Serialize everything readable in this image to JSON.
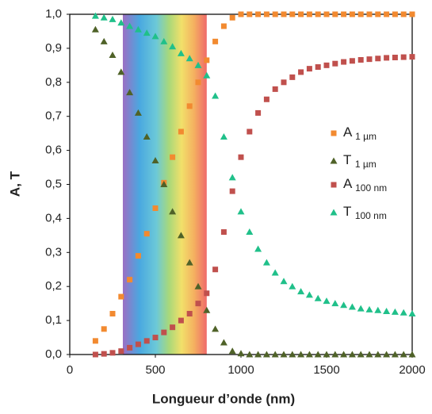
{
  "chart_data": {
    "type": "scatter",
    "xlabel": "Longueur d’onde (nm)",
    "ylabel": "A, T",
    "xlim": [
      0,
      2000
    ],
    "xticks": [
      0,
      500,
      1000,
      1500,
      2000
    ],
    "ylim": [
      0,
      1
    ],
    "yticks": [
      {
        "value": 0,
        "label": "0,0"
      },
      {
        "value": 0.1,
        "label": "0,1"
      },
      {
        "value": 0.2,
        "label": "0,2"
      },
      {
        "value": 0.3,
        "label": "0,3"
      },
      {
        "value": 0.4,
        "label": "0,4"
      },
      {
        "value": 0.5,
        "label": "0,5"
      },
      {
        "value": 0.6,
        "label": "0,6"
      },
      {
        "value": 0.7,
        "label": "0,7"
      },
      {
        "value": 0.8,
        "label": "0,8"
      },
      {
        "value": 0.9,
        "label": "0,9"
      },
      {
        "value": 1,
        "label": "1,0"
      }
    ],
    "highlight_range": [
      310,
      800
    ],
    "legend": "right",
    "x": [
      150,
      200,
      250,
      300,
      350,
      400,
      450,
      500,
      550,
      600,
      650,
      700,
      750,
      800,
      850,
      900,
      950,
      1000,
      1050,
      1100,
      1150,
      1200,
      1250,
      1300,
      1350,
      1400,
      1450,
      1500,
      1550,
      1600,
      1650,
      1700,
      1750,
      1800,
      1850,
      1900,
      1950,
      2000
    ],
    "series": [
      {
        "name": "A 1 µm",
        "color": "#f28a30",
        "marker": "square",
        "values": [
          0.04,
          0.075,
          0.12,
          0.17,
          0.22,
          0.29,
          0.355,
          0.43,
          0.505,
          0.58,
          0.655,
          0.73,
          0.8,
          0.865,
          0.92,
          0.965,
          0.99,
          1,
          1,
          1,
          1,
          1,
          1,
          1,
          1,
          1,
          1,
          1,
          1,
          1,
          1,
          1,
          1,
          1,
          1,
          1,
          1,
          1
        ]
      },
      {
        "name": "T 1 µm",
        "color": "#4f6228",
        "marker": "triangle",
        "values": [
          0.955,
          0.92,
          0.88,
          0.83,
          0.77,
          0.71,
          0.64,
          0.57,
          0.5,
          0.42,
          0.35,
          0.27,
          0.2,
          0.13,
          0.075,
          0.035,
          0.01,
          0.003,
          0,
          0,
          0,
          0,
          0,
          0,
          0,
          0,
          0,
          0,
          0,
          0,
          0,
          0,
          0,
          0,
          0,
          0,
          0,
          0
        ]
      },
      {
        "name": "A 100 nm",
        "color": "#c0504d",
        "marker": "square",
        "values": [
          0,
          0.002,
          0.005,
          0.01,
          0.02,
          0.03,
          0.04,
          0.05,
          0.065,
          0.08,
          0.1,
          0.12,
          0.15,
          0.18,
          0.25,
          0.36,
          0.48,
          0.58,
          0.655,
          0.71,
          0.75,
          0.78,
          0.8,
          0.815,
          0.83,
          0.84,
          0.845,
          0.85,
          0.855,
          0.86,
          0.863,
          0.866,
          0.868,
          0.87,
          0.872,
          0.873,
          0.874,
          0.875
        ]
      },
      {
        "name": "T 100 nm",
        "color": "#20c08a",
        "marker": "triangle",
        "values": [
          0.995,
          0.99,
          0.985,
          0.975,
          0.965,
          0.955,
          0.945,
          0.935,
          0.92,
          0.905,
          0.885,
          0.87,
          0.85,
          0.82,
          0.76,
          0.64,
          0.52,
          0.42,
          0.36,
          0.31,
          0.27,
          0.24,
          0.215,
          0.2,
          0.185,
          0.175,
          0.165,
          0.157,
          0.15,
          0.145,
          0.14,
          0.135,
          0.132,
          0.13,
          0.127,
          0.125,
          0.123,
          0.12
        ]
      }
    ]
  }
}
